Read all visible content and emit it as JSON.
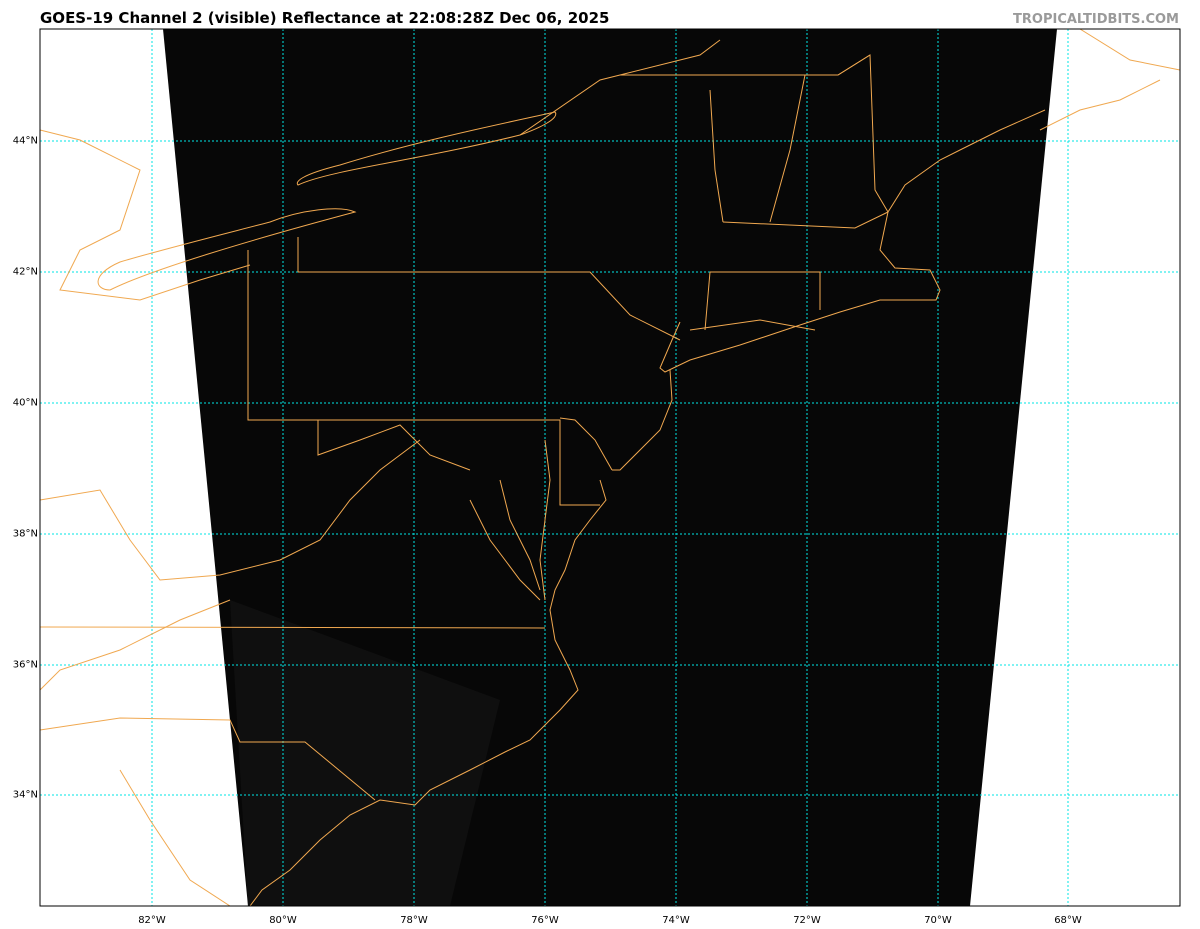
{
  "title": "GOES-19 Channel 2 (visible) Reflectance at 22:08:28Z Dec 06, 2025",
  "credit": "TROPICALTIDBITS.COM",
  "map": {
    "product": "GOES-19 Channel 2 visible reflectance",
    "gridline_color": "#00e5e5",
    "coastline_color": "#f0a850",
    "latitude_labels": [
      "44°N",
      "42°N",
      "40°N",
      "38°N",
      "36°N",
      "34°N"
    ],
    "longitude_labels": [
      "82°W",
      "80°W",
      "78°W",
      "76°W",
      "74°W",
      "72°W",
      "70°W",
      "68°W"
    ]
  }
}
